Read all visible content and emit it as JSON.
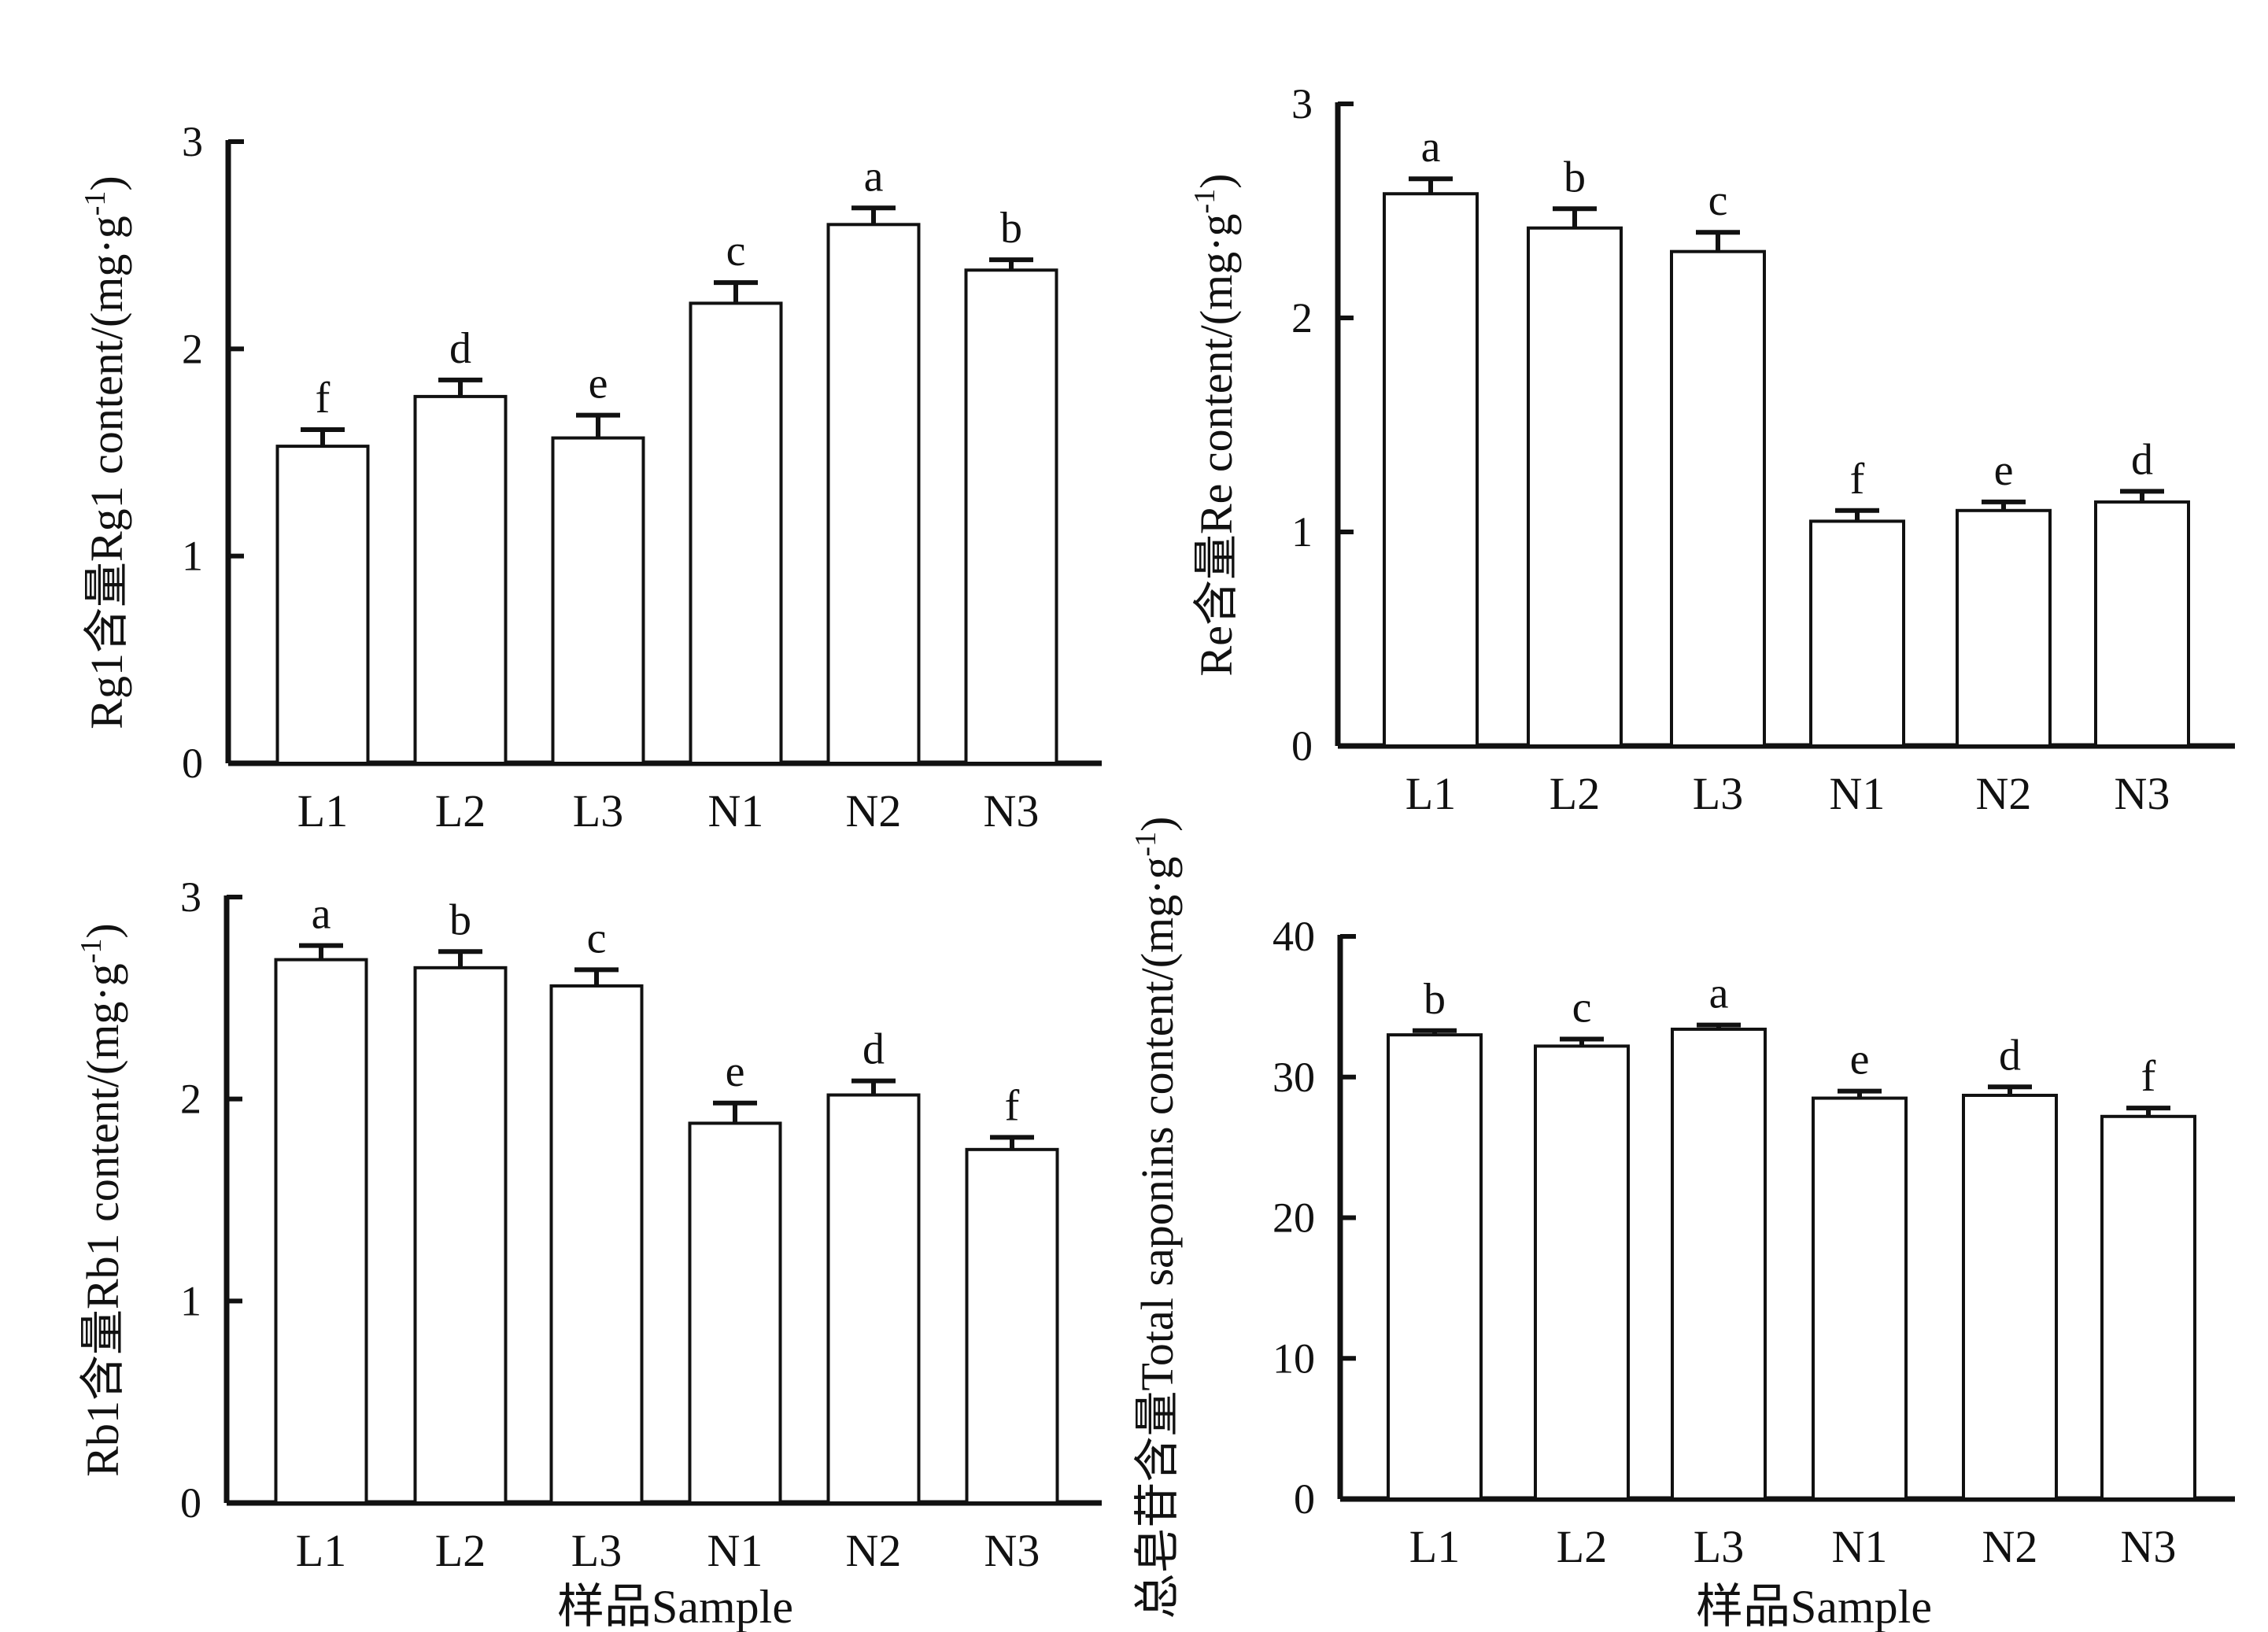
{
  "chart_data": [
    {
      "id": "rg1",
      "type": "bar",
      "categories": [
        "L1",
        "L2",
        "L3",
        "N1",
        "N2",
        "N3"
      ],
      "values": [
        1.53,
        1.77,
        1.57,
        2.22,
        2.6,
        2.38
      ],
      "errors": [
        0.08,
        0.08,
        0.11,
        0.1,
        0.08,
        0.05
      ],
      "significance": [
        "f",
        "d",
        "e",
        "c",
        "a",
        "b"
      ],
      "ylabel_cn": "Rg1含量",
      "ylabel_en": "Rg1 content/(mg·g",
      "ylabel_sup": "-1",
      "ylabel_close": ")",
      "xlabel": "",
      "ylim": [
        0,
        3
      ],
      "yticks": [
        "0",
        "1",
        "2",
        "3"
      ]
    },
    {
      "id": "re",
      "type": "bar",
      "categories": [
        "L1",
        "L2",
        "L3",
        "N1",
        "N2",
        "N3"
      ],
      "values": [
        2.58,
        2.42,
        2.31,
        1.05,
        1.1,
        1.14
      ],
      "errors": [
        0.07,
        0.09,
        0.09,
        0.05,
        0.04,
        0.05
      ],
      "significance": [
        "a",
        "b",
        "c",
        "f",
        "e",
        "d"
      ],
      "ylabel_cn": "Re含量",
      "ylabel_en": "Re content/(mg·g",
      "ylabel_sup": "-1",
      "ylabel_close": ")",
      "xlabel": "",
      "ylim": [
        0,
        3
      ],
      "yticks": [
        "0",
        "1",
        "2",
        "3"
      ]
    },
    {
      "id": "rb1",
      "type": "bar",
      "categories": [
        "L1",
        "L2",
        "L3",
        "N1",
        "N2",
        "N3"
      ],
      "values": [
        2.69,
        2.65,
        2.56,
        1.88,
        2.02,
        1.75
      ],
      "errors": [
        0.07,
        0.08,
        0.08,
        0.1,
        0.07,
        0.06
      ],
      "significance": [
        "a",
        "b",
        "c",
        "e",
        "d",
        "f"
      ],
      "ylabel_cn": "Rb1含量",
      "ylabel_en": "Rb1 content/(mg·g",
      "ylabel_sup": "-1",
      "ylabel_close": ")",
      "xlabel": "样品Sample",
      "ylim": [
        0,
        3
      ],
      "yticks": [
        "0",
        "1",
        "2",
        "3"
      ]
    },
    {
      "id": "total",
      "type": "bar",
      "categories": [
        "L1",
        "L2",
        "L3",
        "N1",
        "N2",
        "N3"
      ],
      "values": [
        33.0,
        32.2,
        33.4,
        28.5,
        28.7,
        27.2
      ],
      "errors": [
        0.3,
        0.5,
        0.3,
        0.5,
        0.6,
        0.6
      ],
      "significance": [
        "b",
        "c",
        "a",
        "e",
        "d",
        "f"
      ],
      "ylabel_cn": "总皂苷含量",
      "ylabel_en": "Total saponins content/(mg·g",
      "ylabel_sup": "-1",
      "ylabel_close": ")",
      "xlabel": "样品Sample",
      "ylim": [
        0,
        40
      ],
      "yticks": [
        "0",
        "10",
        "20",
        "30",
        "40"
      ]
    }
  ]
}
